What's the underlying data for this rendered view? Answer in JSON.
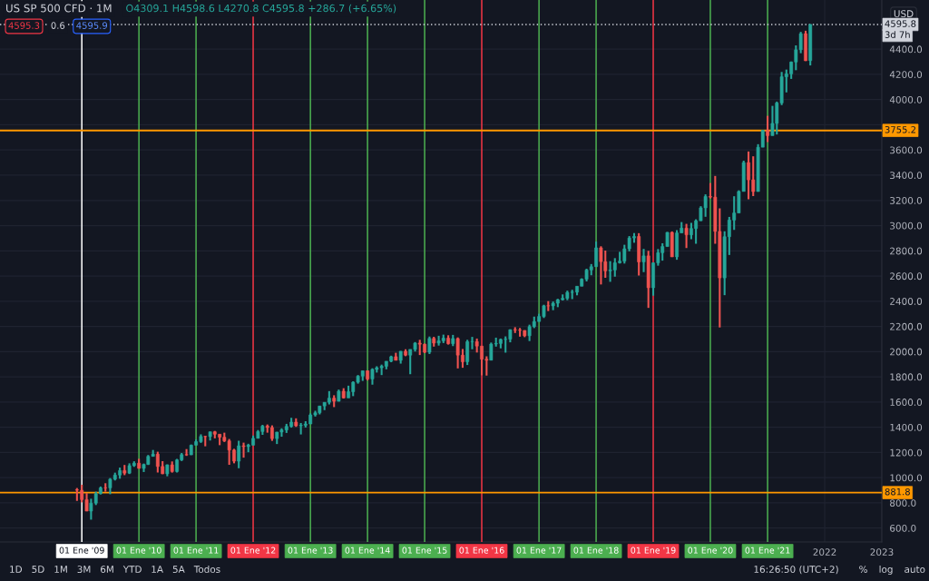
{
  "chart_data": {
    "type": "candlestick",
    "title": "US SP 500 CFD · 1M",
    "subtitle": "O4309.1 H4598.6 L4270.8 C4595.8 +286.7 (+6.65%)",
    "ylabel": "USD",
    "x": [
      "2008-12",
      "2009-01",
      "2009-02",
      "2009-03",
      "2009-04",
      "2009-05",
      "2009-06",
      "2009-07",
      "2009-08",
      "2009-09",
      "2009-10",
      "2009-11",
      "2009-12",
      "2010-01",
      "2010-02",
      "2010-03",
      "2010-04",
      "2010-05",
      "2010-06",
      "2010-07",
      "2010-08",
      "2010-09",
      "2010-10",
      "2010-11",
      "2010-12",
      "2011-01",
      "2011-02",
      "2011-03",
      "2011-04",
      "2011-05",
      "2011-06",
      "2011-07",
      "2011-08",
      "2011-09",
      "2011-10",
      "2011-11",
      "2011-12",
      "2012-01",
      "2012-02",
      "2012-03",
      "2012-04",
      "2012-05",
      "2012-06",
      "2012-07",
      "2012-08",
      "2012-09",
      "2012-10",
      "2012-11",
      "2012-12",
      "2013-01",
      "2013-02",
      "2013-03",
      "2013-04",
      "2013-05",
      "2013-06",
      "2013-07",
      "2013-08",
      "2013-09",
      "2013-10",
      "2013-11",
      "2013-12",
      "2014-01",
      "2014-02",
      "2014-03",
      "2014-04",
      "2014-05",
      "2014-06",
      "2014-07",
      "2014-08",
      "2014-09",
      "2014-10",
      "2014-11",
      "2014-12",
      "2015-01",
      "2015-02",
      "2015-03",
      "2015-04",
      "2015-05",
      "2015-06",
      "2015-07",
      "2015-08",
      "2015-09",
      "2015-10",
      "2015-11",
      "2015-12",
      "2016-01",
      "2016-02",
      "2016-03",
      "2016-04",
      "2016-05",
      "2016-06",
      "2016-07",
      "2016-08",
      "2016-09",
      "2016-10",
      "2016-11",
      "2016-12",
      "2017-01",
      "2017-02",
      "2017-03",
      "2017-04",
      "2017-05",
      "2017-06",
      "2017-07",
      "2017-08",
      "2017-09",
      "2017-10",
      "2017-11",
      "2017-12",
      "2018-01",
      "2018-02",
      "2018-03",
      "2018-04",
      "2018-05",
      "2018-06",
      "2018-07",
      "2018-08",
      "2018-09",
      "2018-10",
      "2018-11",
      "2018-12",
      "2019-01",
      "2019-02",
      "2019-03",
      "2019-04",
      "2019-05",
      "2019-06",
      "2019-07",
      "2019-08",
      "2019-09",
      "2019-10",
      "2019-11",
      "2019-12",
      "2020-01",
      "2020-02",
      "2020-03",
      "2020-04",
      "2020-05",
      "2020-06",
      "2020-07",
      "2020-08",
      "2020-09",
      "2020-10",
      "2020-11",
      "2020-12",
      "2021-01",
      "2021-02",
      "2021-03",
      "2021-04",
      "2021-05",
      "2021-06",
      "2021-07",
      "2021-08",
      "2021-09",
      "2021-10"
    ],
    "ohlc": [
      [
        905,
        918,
        816,
        900
      ],
      [
        900,
        944,
        804,
        826
      ],
      [
        826,
        878,
        734,
        735
      ],
      [
        735,
        833,
        667,
        798
      ],
      [
        798,
        889,
        783,
        873
      ],
      [
        873,
        930,
        867,
        919
      ],
      [
        920,
        956,
        889,
        919
      ],
      [
        919,
        997,
        869,
        988
      ],
      [
        988,
        1040,
        978,
        1021
      ],
      [
        1021,
        1080,
        992,
        1057
      ],
      [
        1057,
        1101,
        1020,
        1036
      ],
      [
        1036,
        1114,
        1029,
        1096
      ],
      [
        1096,
        1130,
        1086,
        1115
      ],
      [
        1115,
        1150,
        1072,
        1074
      ],
      [
        1074,
        1112,
        1045,
        1105
      ],
      [
        1105,
        1180,
        1101,
        1169
      ],
      [
        1169,
        1220,
        1167,
        1187
      ],
      [
        1187,
        1206,
        1041,
        1089
      ],
      [
        1089,
        1131,
        1028,
        1031
      ],
      [
        1031,
        1105,
        1011,
        1102
      ],
      [
        1102,
        1129,
        1040,
        1049
      ],
      [
        1049,
        1149,
        1041,
        1141
      ],
      [
        1141,
        1196,
        1132,
        1183
      ],
      [
        1183,
        1227,
        1173,
        1181
      ],
      [
        1181,
        1263,
        1180,
        1258
      ],
      [
        1258,
        1303,
        1257,
        1286
      ],
      [
        1286,
        1344,
        1276,
        1327
      ],
      [
        1327,
        1332,
        1249,
        1326
      ],
      [
        1326,
        1365,
        1295,
        1364
      ],
      [
        1364,
        1371,
        1312,
        1345
      ],
      [
        1345,
        1345,
        1258,
        1321
      ],
      [
        1321,
        1357,
        1283,
        1292
      ],
      [
        1292,
        1307,
        1102,
        1219
      ],
      [
        1219,
        1229,
        1114,
        1131
      ],
      [
        1131,
        1293,
        1075,
        1253
      ],
      [
        1253,
        1278,
        1159,
        1247
      ],
      [
        1247,
        1269,
        1202,
        1258
      ],
      [
        1258,
        1334,
        1257,
        1312
      ],
      [
        1312,
        1378,
        1312,
        1366
      ],
      [
        1366,
        1419,
        1340,
        1409
      ],
      [
        1409,
        1422,
        1357,
        1398
      ],
      [
        1398,
        1415,
        1292,
        1310
      ],
      [
        1310,
        1363,
        1267,
        1362
      ],
      [
        1362,
        1392,
        1325,
        1379
      ],
      [
        1379,
        1427,
        1355,
        1407
      ],
      [
        1407,
        1475,
        1397,
        1441
      ],
      [
        1441,
        1471,
        1403,
        1412
      ],
      [
        1412,
        1434,
        1343,
        1416
      ],
      [
        1416,
        1448,
        1398,
        1426
      ],
      [
        1426,
        1510,
        1426,
        1498
      ],
      [
        1498,
        1531,
        1485,
        1515
      ],
      [
        1515,
        1570,
        1502,
        1569
      ],
      [
        1569,
        1598,
        1536,
        1598
      ],
      [
        1598,
        1687,
        1581,
        1631
      ],
      [
        1631,
        1654,
        1560,
        1606
      ],
      [
        1606,
        1699,
        1605,
        1686
      ],
      [
        1686,
        1710,
        1628,
        1633
      ],
      [
        1633,
        1730,
        1633,
        1682
      ],
      [
        1682,
        1765,
        1647,
        1757
      ],
      [
        1757,
        1814,
        1746,
        1806
      ],
      [
        1806,
        1849,
        1768,
        1848
      ],
      [
        1848,
        1851,
        1771,
        1783
      ],
      [
        1783,
        1868,
        1738,
        1859
      ],
      [
        1859,
        1884,
        1834,
        1872
      ],
      [
        1872,
        1897,
        1814,
        1884
      ],
      [
        1884,
        1924,
        1860,
        1924
      ],
      [
        1924,
        1968,
        1916,
        1960
      ],
      [
        1960,
        1991,
        1931,
        1931
      ],
      [
        1931,
        2005,
        1905,
        2003
      ],
      [
        2003,
        2019,
        1964,
        1972
      ],
      [
        1972,
        2018,
        1821,
        2018
      ],
      [
        2018,
        2076,
        2001,
        2068
      ],
      [
        2068,
        2094,
        1973,
        2059
      ],
      [
        2059,
        2064,
        1988,
        1995
      ],
      [
        1995,
        2120,
        1981,
        2105
      ],
      [
        2105,
        2118,
        2040,
        2068
      ],
      [
        2068,
        2126,
        2048,
        2086
      ],
      [
        2086,
        2135,
        2068,
        2107
      ],
      [
        2107,
        2130,
        2056,
        2063
      ],
      [
        2063,
        2133,
        2044,
        2104
      ],
      [
        2104,
        2113,
        1867,
        1972
      ],
      [
        1972,
        2021,
        1872,
        1920
      ],
      [
        1920,
        2094,
        1894,
        2079
      ],
      [
        2079,
        2117,
        2019,
        2080
      ],
      [
        2080,
        2104,
        1993,
        2044
      ],
      [
        2044,
        2044,
        1812,
        1940
      ],
      [
        1940,
        1963,
        1810,
        1932
      ],
      [
        1932,
        2072,
        1932,
        2060
      ],
      [
        2060,
        2111,
        2040,
        2065
      ],
      [
        2065,
        2104,
        2026,
        2097
      ],
      [
        2097,
        2121,
        1992,
        2099
      ],
      [
        2099,
        2177,
        2074,
        2174
      ],
      [
        2174,
        2194,
        2148,
        2171
      ],
      [
        2171,
        2188,
        2119,
        2168
      ],
      [
        2168,
        2170,
        2115,
        2126
      ],
      [
        2126,
        2214,
        2084,
        2199
      ],
      [
        2199,
        2278,
        2187,
        2239
      ],
      [
        2239,
        2301,
        2239,
        2279
      ],
      [
        2279,
        2372,
        2267,
        2364
      ],
      [
        2364,
        2401,
        2322,
        2363
      ],
      [
        2363,
        2398,
        2329,
        2384
      ],
      [
        2384,
        2419,
        2353,
        2412
      ],
      [
        2412,
        2454,
        2406,
        2423
      ],
      [
        2423,
        2484,
        2408,
        2470
      ],
      [
        2470,
        2491,
        2417,
        2472
      ],
      [
        2472,
        2519,
        2447,
        2519
      ],
      [
        2519,
        2582,
        2519,
        2575
      ],
      [
        2575,
        2658,
        2557,
        2648
      ],
      [
        2648,
        2695,
        2606,
        2674
      ],
      [
        2674,
        2873,
        2674,
        2824
      ],
      [
        2824,
        2836,
        2533,
        2714
      ],
      [
        2714,
        2802,
        2586,
        2641
      ],
      [
        2641,
        2718,
        2554,
        2648
      ],
      [
        2648,
        2742,
        2595,
        2705
      ],
      [
        2705,
        2792,
        2699,
        2718
      ],
      [
        2718,
        2848,
        2699,
        2816
      ],
      [
        2816,
        2917,
        2796,
        2902
      ],
      [
        2902,
        2941,
        2864,
        2914
      ],
      [
        2914,
        2940,
        2604,
        2712
      ],
      [
        2712,
        2815,
        2631,
        2760
      ],
      [
        2760,
        2800,
        2347,
        2507
      ],
      [
        2507,
        2708,
        2444,
        2704
      ],
      [
        2704,
        2814,
        2682,
        2785
      ],
      [
        2785,
        2860,
        2722,
        2834
      ],
      [
        2834,
        2950,
        2834,
        2946
      ],
      [
        2946,
        2954,
        2751,
        2752
      ],
      [
        2752,
        2964,
        2729,
        2942
      ],
      [
        2942,
        3028,
        2942,
        2980
      ],
      [
        2980,
        3014,
        2822,
        2927
      ],
      [
        2927,
        3022,
        2892,
        2977
      ],
      [
        2977,
        3050,
        2856,
        3038
      ],
      [
        3038,
        3154,
        3038,
        3141
      ],
      [
        3141,
        3248,
        3070,
        3231
      ],
      [
        3231,
        3338,
        3215,
        3226
      ],
      [
        3226,
        3394,
        2856,
        2954
      ],
      [
        2954,
        3137,
        2192,
        2585
      ],
      [
        2585,
        2955,
        2448,
        2912
      ],
      [
        2912,
        3069,
        2767,
        3044
      ],
      [
        3044,
        3233,
        2966,
        3100
      ],
      [
        3100,
        3280,
        3100,
        3271
      ],
      [
        3271,
        3515,
        3271,
        3500
      ],
      [
        3500,
        3588,
        3209,
        3363
      ],
      [
        3363,
        3550,
        3234,
        3270
      ],
      [
        3270,
        3646,
        3270,
        3622
      ],
      [
        3622,
        3760,
        3622,
        3756
      ],
      [
        3756,
        3871,
        3663,
        3714
      ],
      [
        3714,
        3950,
        3714,
        3811
      ],
      [
        3811,
        3984,
        3723,
        3973
      ],
      [
        3973,
        4219,
        3956,
        4181
      ],
      [
        4181,
        4238,
        4057,
        4204
      ],
      [
        4204,
        4302,
        4164,
        4298
      ],
      [
        4298,
        4430,
        4233,
        4395
      ],
      [
        4395,
        4537,
        4368,
        4523
      ],
      [
        4523,
        4546,
        4306,
        4308
      ],
      [
        4309.1,
        4598.6,
        4270.8,
        4595.8
      ]
    ],
    "colors": [
      "#ef5350",
      "#ef5350",
      "#ef5350",
      "#26a69a",
      "#26a69a",
      "#26a69a",
      "#ef5350",
      "#26a69a",
      "#26a69a",
      "#26a69a",
      "#ef5350",
      "#26a69a",
      "#26a69a",
      "#ef5350",
      "#26a69a",
      "#26a69a",
      "#26a69a",
      "#ef5350",
      "#ef5350",
      "#26a69a",
      "#ef5350",
      "#26a69a",
      "#26a69a",
      "#ef5350",
      "#26a69a",
      "#26a69a",
      "#26a69a",
      "#ef5350",
      "#26a69a",
      "#ef5350",
      "#ef5350",
      "#ef5350",
      "#ef5350",
      "#ef5350",
      "#26a69a",
      "#ef5350",
      "#26a69a",
      "#26a69a",
      "#26a69a",
      "#26a69a",
      "#ef5350",
      "#ef5350",
      "#26a69a",
      "#26a69a",
      "#26a69a",
      "#26a69a",
      "#ef5350",
      "#26a69a",
      "#26a69a",
      "#26a69a",
      "#26a69a",
      "#26a69a",
      "#26a69a",
      "#26a69a",
      "#ef5350",
      "#26a69a",
      "#ef5350",
      "#26a69a",
      "#26a69a",
      "#26a69a",
      "#26a69a",
      "#ef5350",
      "#26a69a",
      "#26a69a",
      "#26a69a",
      "#26a69a",
      "#26a69a",
      "#ef5350",
      "#26a69a",
      "#ef5350",
      "#26a69a",
      "#26a69a",
      "#ef5350",
      "#ef5350",
      "#26a69a",
      "#ef5350",
      "#26a69a",
      "#26a69a",
      "#ef5350",
      "#26a69a",
      "#ef5350",
      "#ef5350",
      "#26a69a",
      "#26a69a",
      "#ef5350",
      "#ef5350",
      "#ef5350",
      "#26a69a",
      "#26a69a",
      "#26a69a",
      "#26a69a",
      "#26a69a",
      "#ef5350",
      "#ef5350",
      "#ef5350",
      "#26a69a",
      "#26a69a",
      "#26a69a",
      "#26a69a",
      "#ef5350",
      "#26a69a",
      "#26a69a",
      "#26a69a",
      "#26a69a",
      "#26a69a",
      "#26a69a",
      "#26a69a",
      "#26a69a",
      "#26a69a",
      "#26a69a",
      "#ef5350",
      "#ef5350",
      "#26a69a",
      "#26a69a",
      "#26a69a",
      "#26a69a",
      "#26a69a",
      "#26a69a",
      "#ef5350",
      "#26a69a",
      "#ef5350",
      "#26a69a",
      "#26a69a",
      "#26a69a",
      "#26a69a",
      "#ef5350",
      "#26a69a",
      "#26a69a",
      "#ef5350",
      "#26a69a",
      "#26a69a",
      "#26a69a",
      "#26a69a",
      "#ef5350",
      "#ef5350",
      "#ef5350",
      "#26a69a",
      "#26a69a",
      "#26a69a",
      "#26a69a",
      "#26a69a",
      "#ef5350",
      "#ef5350",
      "#26a69a",
      "#26a69a",
      "#ef5350",
      "#26a69a",
      "#26a69a",
      "#26a69a",
      "#26a69a",
      "#26a69a",
      "#26a69a",
      "#26a69a",
      "#ef5350",
      "#26a69a"
    ],
    "xlim": [
      "2007-07-28",
      "2023-01-01"
    ],
    "xticks": [
      {
        "value": "2022-01",
        "label": "2022"
      },
      {
        "value": "2023-01",
        "label": "2023"
      }
    ],
    "ylim": [
      490,
      4790
    ],
    "yticks": [
      {
        "value": 600,
        "label": "600.0"
      },
      {
        "value": 800,
        "label": "800.0"
      },
      {
        "value": 1000,
        "label": "1000.0"
      },
      {
        "value": 1200,
        "label": "1200.0"
      },
      {
        "value": 1400,
        "label": "1400.0"
      },
      {
        "value": 1600,
        "label": "1600.0"
      },
      {
        "value": 1800,
        "label": "1800.0"
      },
      {
        "value": 2000,
        "label": "2000.0"
      },
      {
        "value": 2200,
        "label": "2200.0"
      },
      {
        "value": 2400,
        "label": "2400.0"
      },
      {
        "value": 2600,
        "label": "2600.0"
      },
      {
        "value": 2800,
        "label": "2800.0"
      },
      {
        "value": 3000,
        "label": "3000.0"
      },
      {
        "value": 3200,
        "label": "3200.0"
      },
      {
        "value": 3400,
        "label": "3400.0"
      },
      {
        "value": 3600,
        "label": "3600.0"
      },
      {
        "value": 3800,
        "label": null
      },
      {
        "value": 4000,
        "label": "4000.0"
      },
      {
        "value": 4200,
        "label": "4200.0"
      },
      {
        "value": 4400,
        "label": "4400.0"
      }
    ],
    "grid": true,
    "ref_lines": [
      {
        "axis": "x",
        "value": "2009-01",
        "label": "01 Ene '09",
        "color": "#ffffff"
      },
      {
        "axis": "x",
        "value": "2010-01",
        "label": "01 Ene '10",
        "color": "#4caf50"
      },
      {
        "axis": "x",
        "value": "2011-01",
        "label": "01 Ene '11",
        "color": "#4caf50"
      },
      {
        "axis": "x",
        "value": "2012-01",
        "label": "01 Ene '12",
        "color": "#f23645"
      },
      {
        "axis": "x",
        "value": "2013-01",
        "label": "01 Ene '13",
        "color": "#4caf50"
      },
      {
        "axis": "x",
        "value": "2014-01",
        "label": "01 Ene '14",
        "color": "#4caf50"
      },
      {
        "axis": "x",
        "value": "2015-01",
        "label": "01 Ene '15",
        "color": "#4caf50"
      },
      {
        "axis": "x",
        "value": "2016-01",
        "label": "01 Ene '16",
        "color": "#f23645"
      },
      {
        "axis": "x",
        "value": "2017-01",
        "label": "01 Ene '17",
        "color": "#4caf50"
      },
      {
        "axis": "x",
        "value": "2018-01",
        "label": "01 Ene '18",
        "color": "#4caf50"
      },
      {
        "axis": "x",
        "value": "2019-01",
        "label": "01 Ene '19",
        "color": "#f23645"
      },
      {
        "axis": "x",
        "value": "2020-01",
        "label": "01 Ene '20",
        "color": "#4caf50"
      },
      {
        "axis": "x",
        "value": "2021-01",
        "label": "01 Ene '21",
        "color": "#4caf50"
      },
      {
        "axis": "y",
        "value": 4595.8,
        "label": "4595.8",
        "color": "#d1d4dc",
        "line_style": "dotted"
      },
      {
        "axis": "y",
        "value": 3755.2,
        "label": "3755.2",
        "color": "#ff9800"
      },
      {
        "axis": "y",
        "value": 881.8,
        "label": "881.8",
        "color": "#ff9800"
      }
    ],
    "annotations": [
      "4595.3",
      "0.6",
      "4595.9",
      "3d 7h",
      "1D",
      "5D",
      "1M",
      "3M",
      "6M",
      "YTD",
      "1A",
      "5A",
      "Todos",
      "16:26:50 (UTC+2)",
      "%",
      "log",
      "auto"
    ]
  }
}
